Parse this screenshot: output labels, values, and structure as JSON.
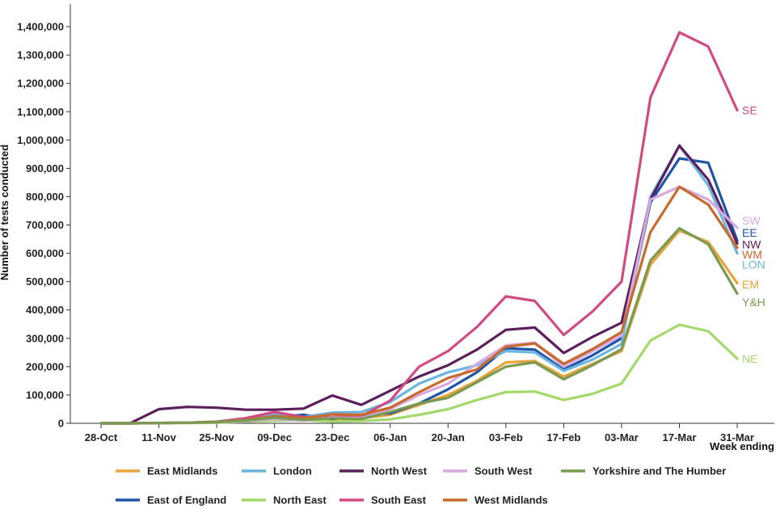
{
  "chart_data": {
    "type": "line",
    "title": "",
    "ylabel": "Number of tests conducted",
    "xlabel": "Week ending",
    "ylim": [
      0,
      1480000
    ],
    "yticks": [
      0,
      100000,
      200000,
      300000,
      400000,
      500000,
      600000,
      700000,
      800000,
      900000,
      1000000,
      1100000,
      1200000,
      1300000,
      1400000
    ],
    "ytick_labels": [
      "0",
      "100,000",
      "200,000",
      "300,000",
      "400,000",
      "500,000",
      "600,000",
      "700,000",
      "800,000",
      "900,000",
      "1,000,000",
      "1,100,000",
      "1,200,000",
      "1,300,000",
      "1,400,000"
    ],
    "x_tick_indices": [
      0,
      2,
      4,
      6,
      8,
      10,
      12,
      14,
      16,
      18,
      20,
      22
    ],
    "x_tick_labels": [
      "28-Oct",
      "11-Nov",
      "25-Nov",
      "09-Dec",
      "23-Dec",
      "06-Jan",
      "20-Jan",
      "03-Feb",
      "17-Feb",
      "03-Mar",
      "17-Mar",
      "31-Mar"
    ],
    "num_points": 23,
    "series": [
      {
        "name": "East Midlands",
        "abbr": "EM",
        "color": "#E8A33A",
        "values": [
          0,
          0,
          1000,
          2000,
          4000,
          8000,
          12000,
          18000,
          14000,
          18000,
          30000,
          65000,
          100000,
          150000,
          215000,
          220000,
          165000,
          210000,
          255000,
          560000,
          680000,
          640000,
          495000
        ]
      },
      {
        "name": "East of England",
        "abbr": "EE",
        "color": "#1E54A8",
        "values": [
          0,
          0,
          1000,
          2000,
          5000,
          12000,
          22000,
          30000,
          15000,
          30000,
          35000,
          70000,
          120000,
          180000,
          265000,
          260000,
          190000,
          240000,
          300000,
          780000,
          935000,
          920000,
          645000
        ]
      },
      {
        "name": "London",
        "abbr": "LON",
        "color": "#6BB6E0",
        "values": [
          0,
          0,
          1000,
          2000,
          6000,
          18000,
          30000,
          22000,
          38000,
          40000,
          75000,
          140000,
          180000,
          205000,
          255000,
          250000,
          185000,
          225000,
          280000,
          800000,
          980000,
          840000,
          600000
        ]
      },
      {
        "name": "North East",
        "abbr": "NE",
        "color": "#A3D96A",
        "values": [
          0,
          0,
          500,
          1000,
          2000,
          6000,
          9000,
          12000,
          6000,
          8000,
          14000,
          30000,
          50000,
          82000,
          110000,
          112000,
          82000,
          104000,
          140000,
          292000,
          348000,
          325000,
          228000
        ]
      },
      {
        "name": "North West",
        "abbr": "NW",
        "color": "#5C1F5E",
        "values": [
          0,
          0,
          50000,
          58000,
          55000,
          48000,
          48000,
          52000,
          98000,
          65000,
          115000,
          165000,
          205000,
          260000,
          330000,
          338000,
          248000,
          305000,
          355000,
          790000,
          980000,
          860000,
          635000
        ]
      },
      {
        "name": "South East",
        "abbr": "SE",
        "color": "#D24A82",
        "values": [
          0,
          0,
          1000,
          2000,
          5000,
          18000,
          40000,
          22000,
          22000,
          25000,
          80000,
          200000,
          255000,
          340000,
          448000,
          432000,
          312000,
          395000,
          500000,
          1150000,
          1380000,
          1330000,
          1105000
        ]
      },
      {
        "name": "South West",
        "abbr": "SW",
        "color": "#D7A9E0",
        "values": [
          0,
          0,
          1000,
          2000,
          4000,
          8000,
          15000,
          10000,
          20000,
          18000,
          50000,
          100000,
          140000,
          210000,
          275000,
          285000,
          200000,
          255000,
          310000,
          790000,
          835000,
          790000,
          690000
        ]
      },
      {
        "name": "West Midlands",
        "abbr": "WM",
        "color": "#C8692D",
        "values": [
          0,
          0,
          1000,
          2000,
          5000,
          12000,
          25000,
          18000,
          32000,
          30000,
          55000,
          110000,
          160000,
          190000,
          270000,
          282000,
          210000,
          262000,
          322000,
          675000,
          835000,
          772000,
          620000
        ]
      },
      {
        "name": "Yorkshire and The Humber",
        "abbr": "Y&H",
        "color": "#7A9A52",
        "values": [
          0,
          0,
          1000,
          2000,
          4000,
          10000,
          20000,
          12000,
          18000,
          15000,
          40000,
          70000,
          90000,
          145000,
          200000,
          215000,
          155000,
          205000,
          262000,
          575000,
          688000,
          632000,
          458000
        ]
      }
    ],
    "end_labels": [
      {
        "abbr": "SE",
        "color": "#D24A82",
        "value": 1105000
      },
      {
        "abbr": "SW",
        "color": "#D7A9E0",
        "value": 716000
      },
      {
        "abbr": "EE",
        "color": "#1E54A8",
        "value": 673000
      },
      {
        "abbr": "NW",
        "color": "#5C1F5E",
        "value": 632000
      },
      {
        "abbr": "WM",
        "color": "#C8692D",
        "value": 596000
      },
      {
        "abbr": "LON",
        "color": "#6BB6E0",
        "value": 560000
      },
      {
        "abbr": "EM",
        "color": "#E8A33A",
        "value": 490000
      },
      {
        "abbr": "Y&H",
        "color": "#7A9A52",
        "value": 428000
      },
      {
        "abbr": "NE",
        "color": "#A3D96A",
        "value": 228000
      }
    ],
    "legend": {
      "placement": "bottom",
      "rows": [
        [
          "East Midlands",
          "London",
          "North West",
          "South West",
          "Yorkshire and The Humber"
        ],
        [
          "East of England",
          "North East",
          "South East",
          "West Midlands"
        ]
      ]
    }
  }
}
